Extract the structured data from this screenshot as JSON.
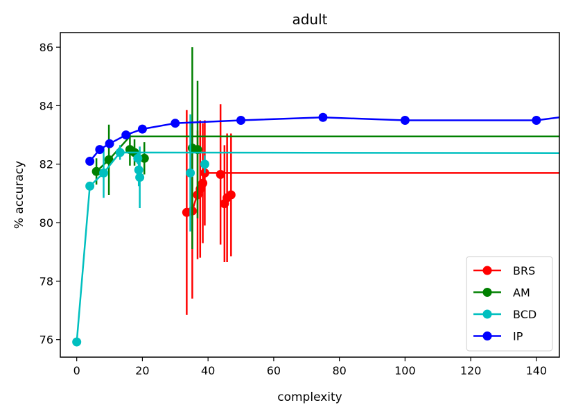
{
  "chart_data": {
    "type": "line",
    "title": "adult",
    "xlabel": "complexity",
    "ylabel": "% accuracy",
    "xlim": [
      -5,
      147
    ],
    "ylim": [
      75.4,
      86.5
    ],
    "xticks": [
      0,
      20,
      40,
      60,
      80,
      100,
      120,
      140
    ],
    "yticks": [
      76,
      78,
      80,
      82,
      84,
      86
    ],
    "grid": false,
    "legend_position": "bottom-right",
    "series": [
      {
        "name": "BRS",
        "color": "#ff0000",
        "line": [
          [
            33.5,
            80.4
          ],
          [
            35.2,
            80.4
          ],
          [
            36.8,
            81.0
          ],
          [
            37.6,
            81.2
          ],
          [
            38.4,
            81.4
          ],
          [
            39.0,
            81.7
          ],
          [
            147,
            81.7
          ]
        ],
        "points": [
          {
            "x": 33.5,
            "y": 80.35,
            "err": 3.5
          },
          {
            "x": 35.2,
            "y": 80.4,
            "err": 3.0
          },
          {
            "x": 36.8,
            "y": 80.95,
            "err": 2.2
          },
          {
            "x": 37.6,
            "y": 81.15,
            "err": 2.35
          },
          {
            "x": 38.4,
            "y": 81.35,
            "err": 2.05
          },
          {
            "x": 39.0,
            "y": 81.7,
            "err": 1.8
          },
          {
            "x": 43.8,
            "y": 81.65,
            "err": 2.4
          },
          {
            "x": 45.0,
            "y": 80.65,
            "err": 2.0
          },
          {
            "x": 45.8,
            "y": 80.85,
            "err": 2.2
          },
          {
            "x": 47.0,
            "y": 80.95,
            "err": 2.1
          }
        ]
      },
      {
        "name": "AM",
        "color": "#008000",
        "line": [
          [
            6.0,
            81.75
          ],
          [
            9.8,
            82.15
          ],
          [
            16.2,
            82.95
          ],
          [
            147,
            82.95
          ]
        ],
        "points": [
          {
            "x": 6.0,
            "y": 81.75,
            "err": 0.45
          },
          {
            "x": 9.8,
            "y": 82.15,
            "err": 1.2
          },
          {
            "x": 16.2,
            "y": 82.5,
            "err": 0.55
          },
          {
            "x": 17.6,
            "y": 82.4,
            "err": 0.45
          },
          {
            "x": 20.6,
            "y": 82.2,
            "err": 0.55
          },
          {
            "x": 35.2,
            "y": 82.55,
            "err": 3.45
          },
          {
            "x": 36.8,
            "y": 82.5,
            "err": 2.35
          }
        ]
      },
      {
        "name": "BCD",
        "color": "#00bfbf",
        "line": [
          [
            0,
            75.92
          ],
          [
            4.0,
            81.25
          ],
          [
            8.2,
            81.7
          ],
          [
            13.2,
            82.4
          ],
          [
            147,
            82.38
          ]
        ],
        "points": [
          {
            "x": 0,
            "y": 75.92,
            "err": 0
          },
          {
            "x": 4.0,
            "y": 81.25,
            "err": 0
          },
          {
            "x": 8.2,
            "y": 81.7,
            "err": 0.85
          },
          {
            "x": 13.2,
            "y": 82.4,
            "err": 0.25
          },
          {
            "x": 18.6,
            "y": 82.2,
            "err": 0.2
          },
          {
            "x": 18.9,
            "y": 81.8,
            "err": 0.55
          },
          {
            "x": 19.2,
            "y": 81.55,
            "err": 1.05
          },
          {
            "x": 34.6,
            "y": 81.7,
            "err": 2.0
          },
          {
            "x": 39.0,
            "y": 82.0,
            "err": 0.3
          }
        ]
      },
      {
        "name": "IP",
        "color": "#0000ff",
        "line": [
          [
            4.0,
            82.1
          ],
          [
            7.0,
            82.5
          ],
          [
            10.0,
            82.7
          ],
          [
            15.0,
            83.0
          ],
          [
            20.0,
            83.2
          ],
          [
            30.0,
            83.4
          ],
          [
            50.0,
            83.5
          ],
          [
            75.0,
            83.6
          ],
          [
            100.0,
            83.5
          ],
          [
            140.0,
            83.5
          ],
          [
            147,
            83.6
          ]
        ],
        "points": [
          {
            "x": 4.0,
            "y": 82.1,
            "err": 0
          },
          {
            "x": 7.0,
            "y": 82.5,
            "err": 0
          },
          {
            "x": 10.0,
            "y": 82.7,
            "err": 0
          },
          {
            "x": 15.0,
            "y": 83.0,
            "err": 0
          },
          {
            "x": 20.0,
            "y": 83.2,
            "err": 0
          },
          {
            "x": 30.0,
            "y": 83.4,
            "err": 0
          },
          {
            "x": 50.0,
            "y": 83.5,
            "err": 0
          },
          {
            "x": 75.0,
            "y": 83.6,
            "err": 0
          },
          {
            "x": 100.0,
            "y": 83.5,
            "err": 0
          },
          {
            "x": 140.0,
            "y": 83.5,
            "err": 0
          }
        ]
      }
    ]
  }
}
